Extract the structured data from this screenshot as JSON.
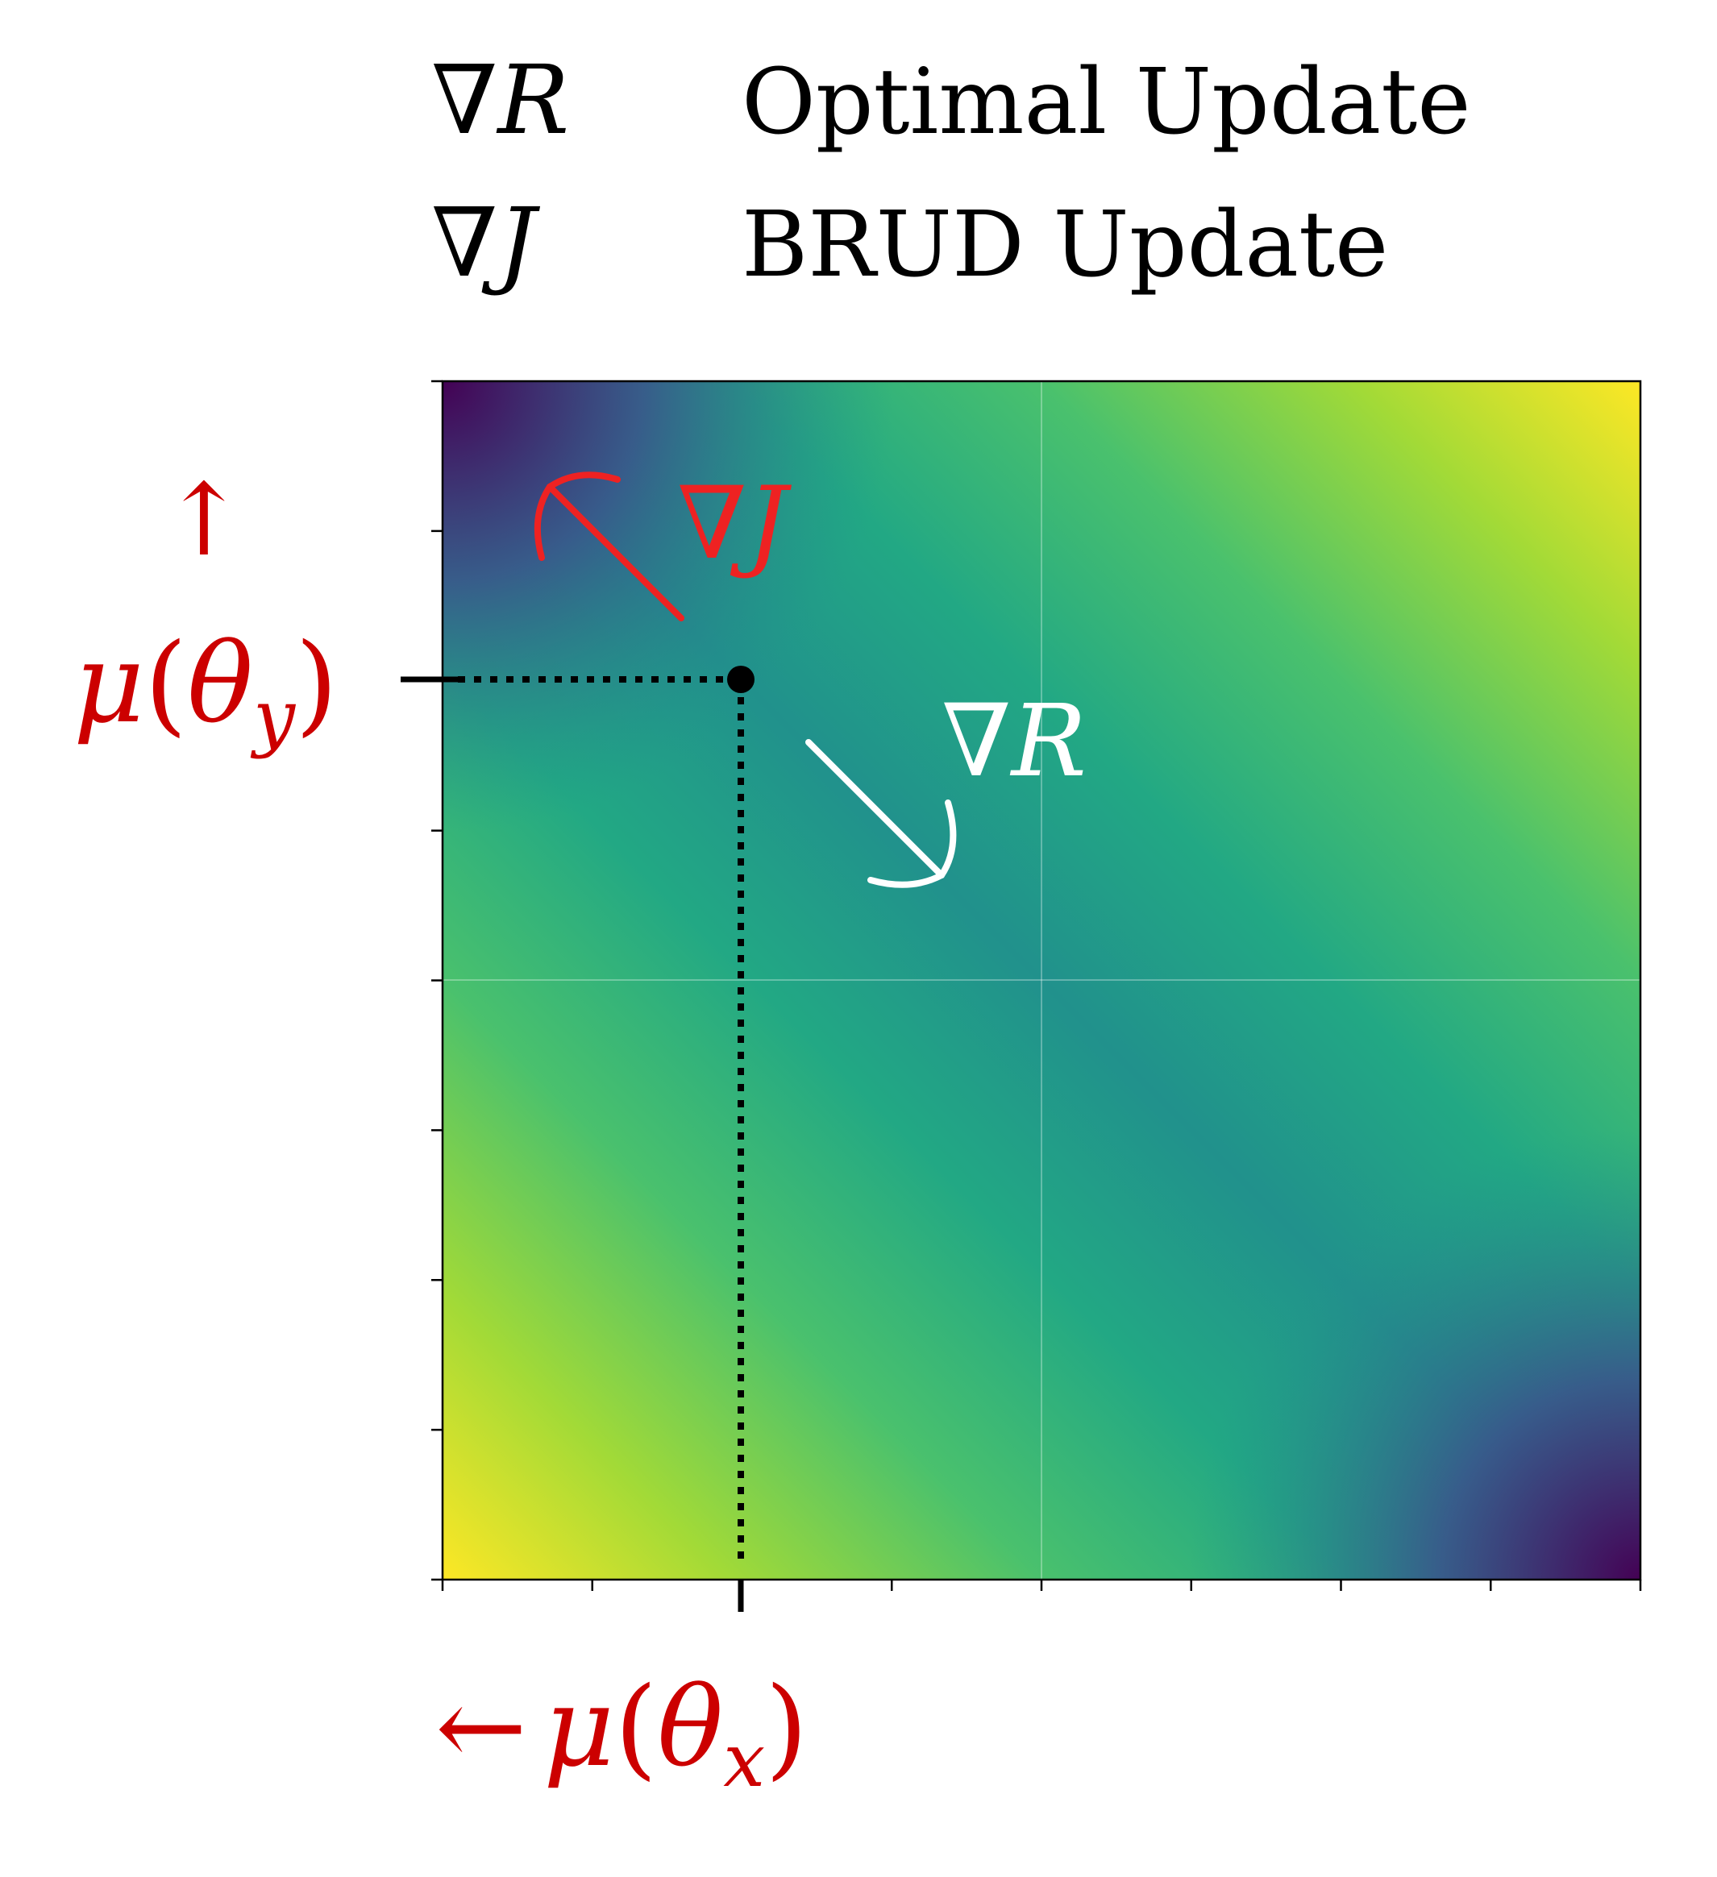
{
  "chart_data": {
    "type": "heatmap",
    "title": "",
    "colormap": "viridis",
    "colormap_stops": [
      "#440154",
      "#3b528b",
      "#21918c",
      "#5ec962",
      "#fde725"
    ],
    "field_description_values": {
      "top_left": "low",
      "bottom_right": "low",
      "top_right": "high",
      "bottom_left": "high",
      "center_diagonal": "mid"
    },
    "xlim": [
      0,
      1
    ],
    "ylim": [
      0,
      1
    ],
    "x_ticks_count": 9,
    "y_ticks_count": 9,
    "grid": "center lines only",
    "point": {
      "x": 0.25,
      "y": 0.75
    },
    "legend": {
      "placement": "top",
      "entries": [
        {
          "symbol": "∇",
          "var": "R",
          "label": "Optimal Update"
        },
        {
          "symbol": "∇",
          "var": "J",
          "label": "BRUD Update"
        }
      ]
    },
    "annotations": {
      "grad_J": {
        "symbol": "∇",
        "var": "J",
        "color": "#ee2222",
        "direction": "up-left"
      },
      "grad_R": {
        "symbol": "∇",
        "var": "R",
        "color": "#ffffff",
        "direction": "down-right"
      }
    },
    "ylabel": {
      "arrow": "↑",
      "mu": "μ",
      "open": "(",
      "theta": "θ",
      "sub": "y",
      "close": ")",
      "color": "#cc0000"
    },
    "xlabel": {
      "arrow": "←",
      "mu": "μ",
      "open": "(",
      "theta": "θ",
      "sub": "x",
      "close": ")",
      "color": "#cc0000"
    }
  }
}
